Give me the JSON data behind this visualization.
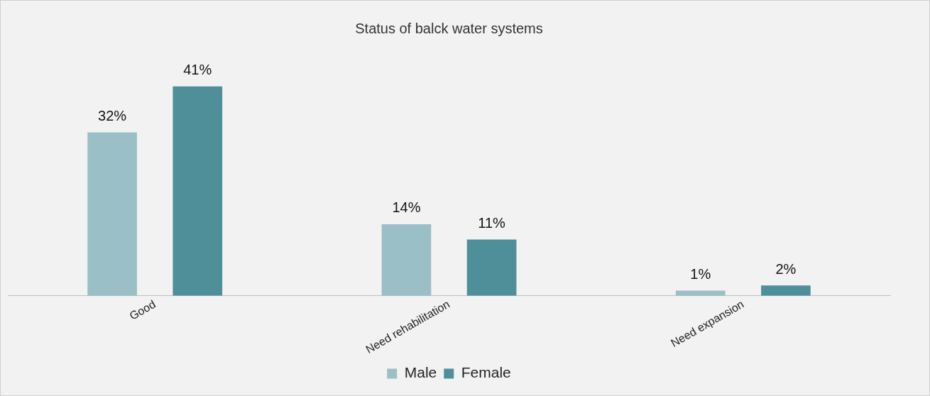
{
  "chart_data": {
    "type": "bar",
    "title": "Status of balck water systems",
    "categories": [
      "Good",
      "Need rehabilitation",
      "Need expansion"
    ],
    "series": [
      {
        "name": "Male",
        "color": "#9bbfc6",
        "values": [
          32,
          14,
          1
        ],
        "value_labels": [
          "32%",
          "14%",
          "1%"
        ]
      },
      {
        "name": "Female",
        "color": "#4f8f99",
        "values": [
          41,
          11,
          2
        ],
        "value_labels": [
          "41%",
          "11%",
          "2%"
        ]
      }
    ],
    "legend": "bottom",
    "grid": false
  }
}
